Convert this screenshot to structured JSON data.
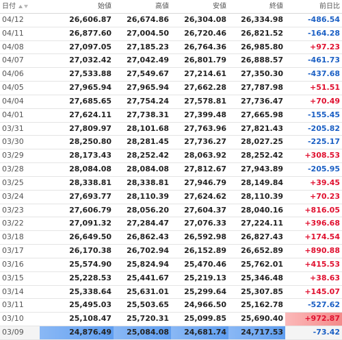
{
  "table": {
    "header": [
      "日付",
      "始値",
      "高値",
      "安値",
      "終値",
      "前日比"
    ],
    "rows": [
      [
        "04/12",
        "26,606.87",
        "26,674.86",
        "26,304.08",
        "26,334.98",
        "-486.54"
      ],
      [
        "04/11",
        "26,877.60",
        "27,004.50",
        "26,720.46",
        "26,821.52",
        "-164.28"
      ],
      [
        "04/08",
        "27,097.05",
        "27,185.23",
        "26,764.36",
        "26,985.80",
        "+97.23"
      ],
      [
        "04/07",
        "27,032.42",
        "27,042.49",
        "26,801.79",
        "26,888.57",
        "-461.73"
      ],
      [
        "04/06",
        "27,533.88",
        "27,549.67",
        "27,214.61",
        "27,350.30",
        "-437.68"
      ],
      [
        "04/05",
        "27,965.94",
        "27,965.94",
        "27,662.28",
        "27,787.98",
        "+51.51"
      ],
      [
        "04/04",
        "27,685.65",
        "27,754.24",
        "27,578.81",
        "27,736.47",
        "+70.49"
      ],
      [
        "04/01",
        "27,624.11",
        "27,738.31",
        "27,399.48",
        "27,665.98",
        "-155.45"
      ],
      [
        "03/31",
        "27,809.97",
        "28,101.68",
        "27,763.96",
        "27,821.43",
        "-205.82"
      ],
      [
        "03/30",
        "28,250.80",
        "28,281.45",
        "27,736.27",
        "28,027.25",
        "-225.17"
      ],
      [
        "03/29",
        "28,173.43",
        "28,252.42",
        "28,063.92",
        "28,252.42",
        "+308.53"
      ],
      [
        "03/28",
        "28,084.08",
        "28,084.08",
        "27,812.67",
        "27,943.89",
        "-205.95"
      ],
      [
        "03/25",
        "28,338.81",
        "28,338.81",
        "27,946.79",
        "28,149.84",
        "+39.45"
      ],
      [
        "03/24",
        "27,693.77",
        "28,110.39",
        "27,624.62",
        "28,110.39",
        "+70.23"
      ],
      [
        "03/23",
        "27,606.79",
        "28,056.20",
        "27,604.37",
        "28,040.16",
        "+816.05"
      ],
      [
        "03/22",
        "27,091.32",
        "27,284.47",
        "27,076.33",
        "27,224.11",
        "+396.68"
      ],
      [
        "03/18",
        "26,649.50",
        "26,862.43",
        "26,592.98",
        "26,827.43",
        "+174.54"
      ],
      [
        "03/17",
        "26,170.38",
        "26,702.94",
        "26,152.89",
        "26,652.89",
        "+890.88"
      ],
      [
        "03/16",
        "25,574.90",
        "25,824.94",
        "25,470.46",
        "25,762.01",
        "+415.53"
      ],
      [
        "03/15",
        "25,228.53",
        "25,441.67",
        "25,219.13",
        "25,346.48",
        "+38.63"
      ],
      [
        "03/14",
        "25,338.64",
        "25,631.01",
        "25,299.64",
        "25,307.85",
        "+145.07"
      ],
      [
        "03/11",
        "25,495.03",
        "25,503.65",
        "24,966.50",
        "25,162.78",
        "-527.62"
      ],
      [
        "03/10",
        "25,108.47",
        "25,720.31",
        "25,099.85",
        "25,690.40",
        "+972.87"
      ],
      [
        "03/09",
        "24,876.49",
        "25,084.08",
        "24,681.74",
        "24,717.53",
        "-73.42"
      ]
    ]
  }
}
